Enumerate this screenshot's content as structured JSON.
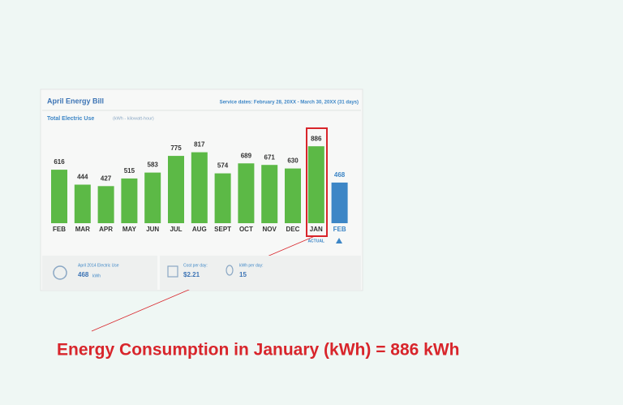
{
  "chart_data": {
    "type": "bar",
    "title": "April Energy Bill",
    "subtitle": "Service dates: February 28, 20XX - March 30, 20XX (31 days)",
    "ylabel": "Total Electric Use",
    "yunit": "(kWh - kilowatt-hour)",
    "categories": [
      "FEB",
      "MAR",
      "APR",
      "MAY",
      "JUN",
      "JUL",
      "AUG",
      "SEPT",
      "OCT",
      "NOV",
      "DEC",
      "JAN",
      "FEB"
    ],
    "values": [
      616,
      444,
      427,
      515,
      583,
      775,
      817,
      574,
      689,
      671,
      630,
      886,
      468
    ],
    "colors": [
      "#5cb946",
      "#5cb946",
      "#5cb946",
      "#5cb946",
      "#5cb946",
      "#5cb946",
      "#5cb946",
      "#5cb946",
      "#5cb946",
      "#5cb946",
      "#5cb946",
      "#5cb946",
      "#3d86c6"
    ],
    "actual_label": "ACTUAL",
    "summary": {
      "usage_label": "April 2014 Electric Use",
      "usage_value": "468",
      "usage_unit": "kWh",
      "cost_label": "Cost per day:",
      "cost_value": "$2.21",
      "kwh_label": "kWh per day:",
      "kwh_value": "15"
    },
    "annotation": "Energy Consumption in January (kWh) = 886 kWh"
  }
}
